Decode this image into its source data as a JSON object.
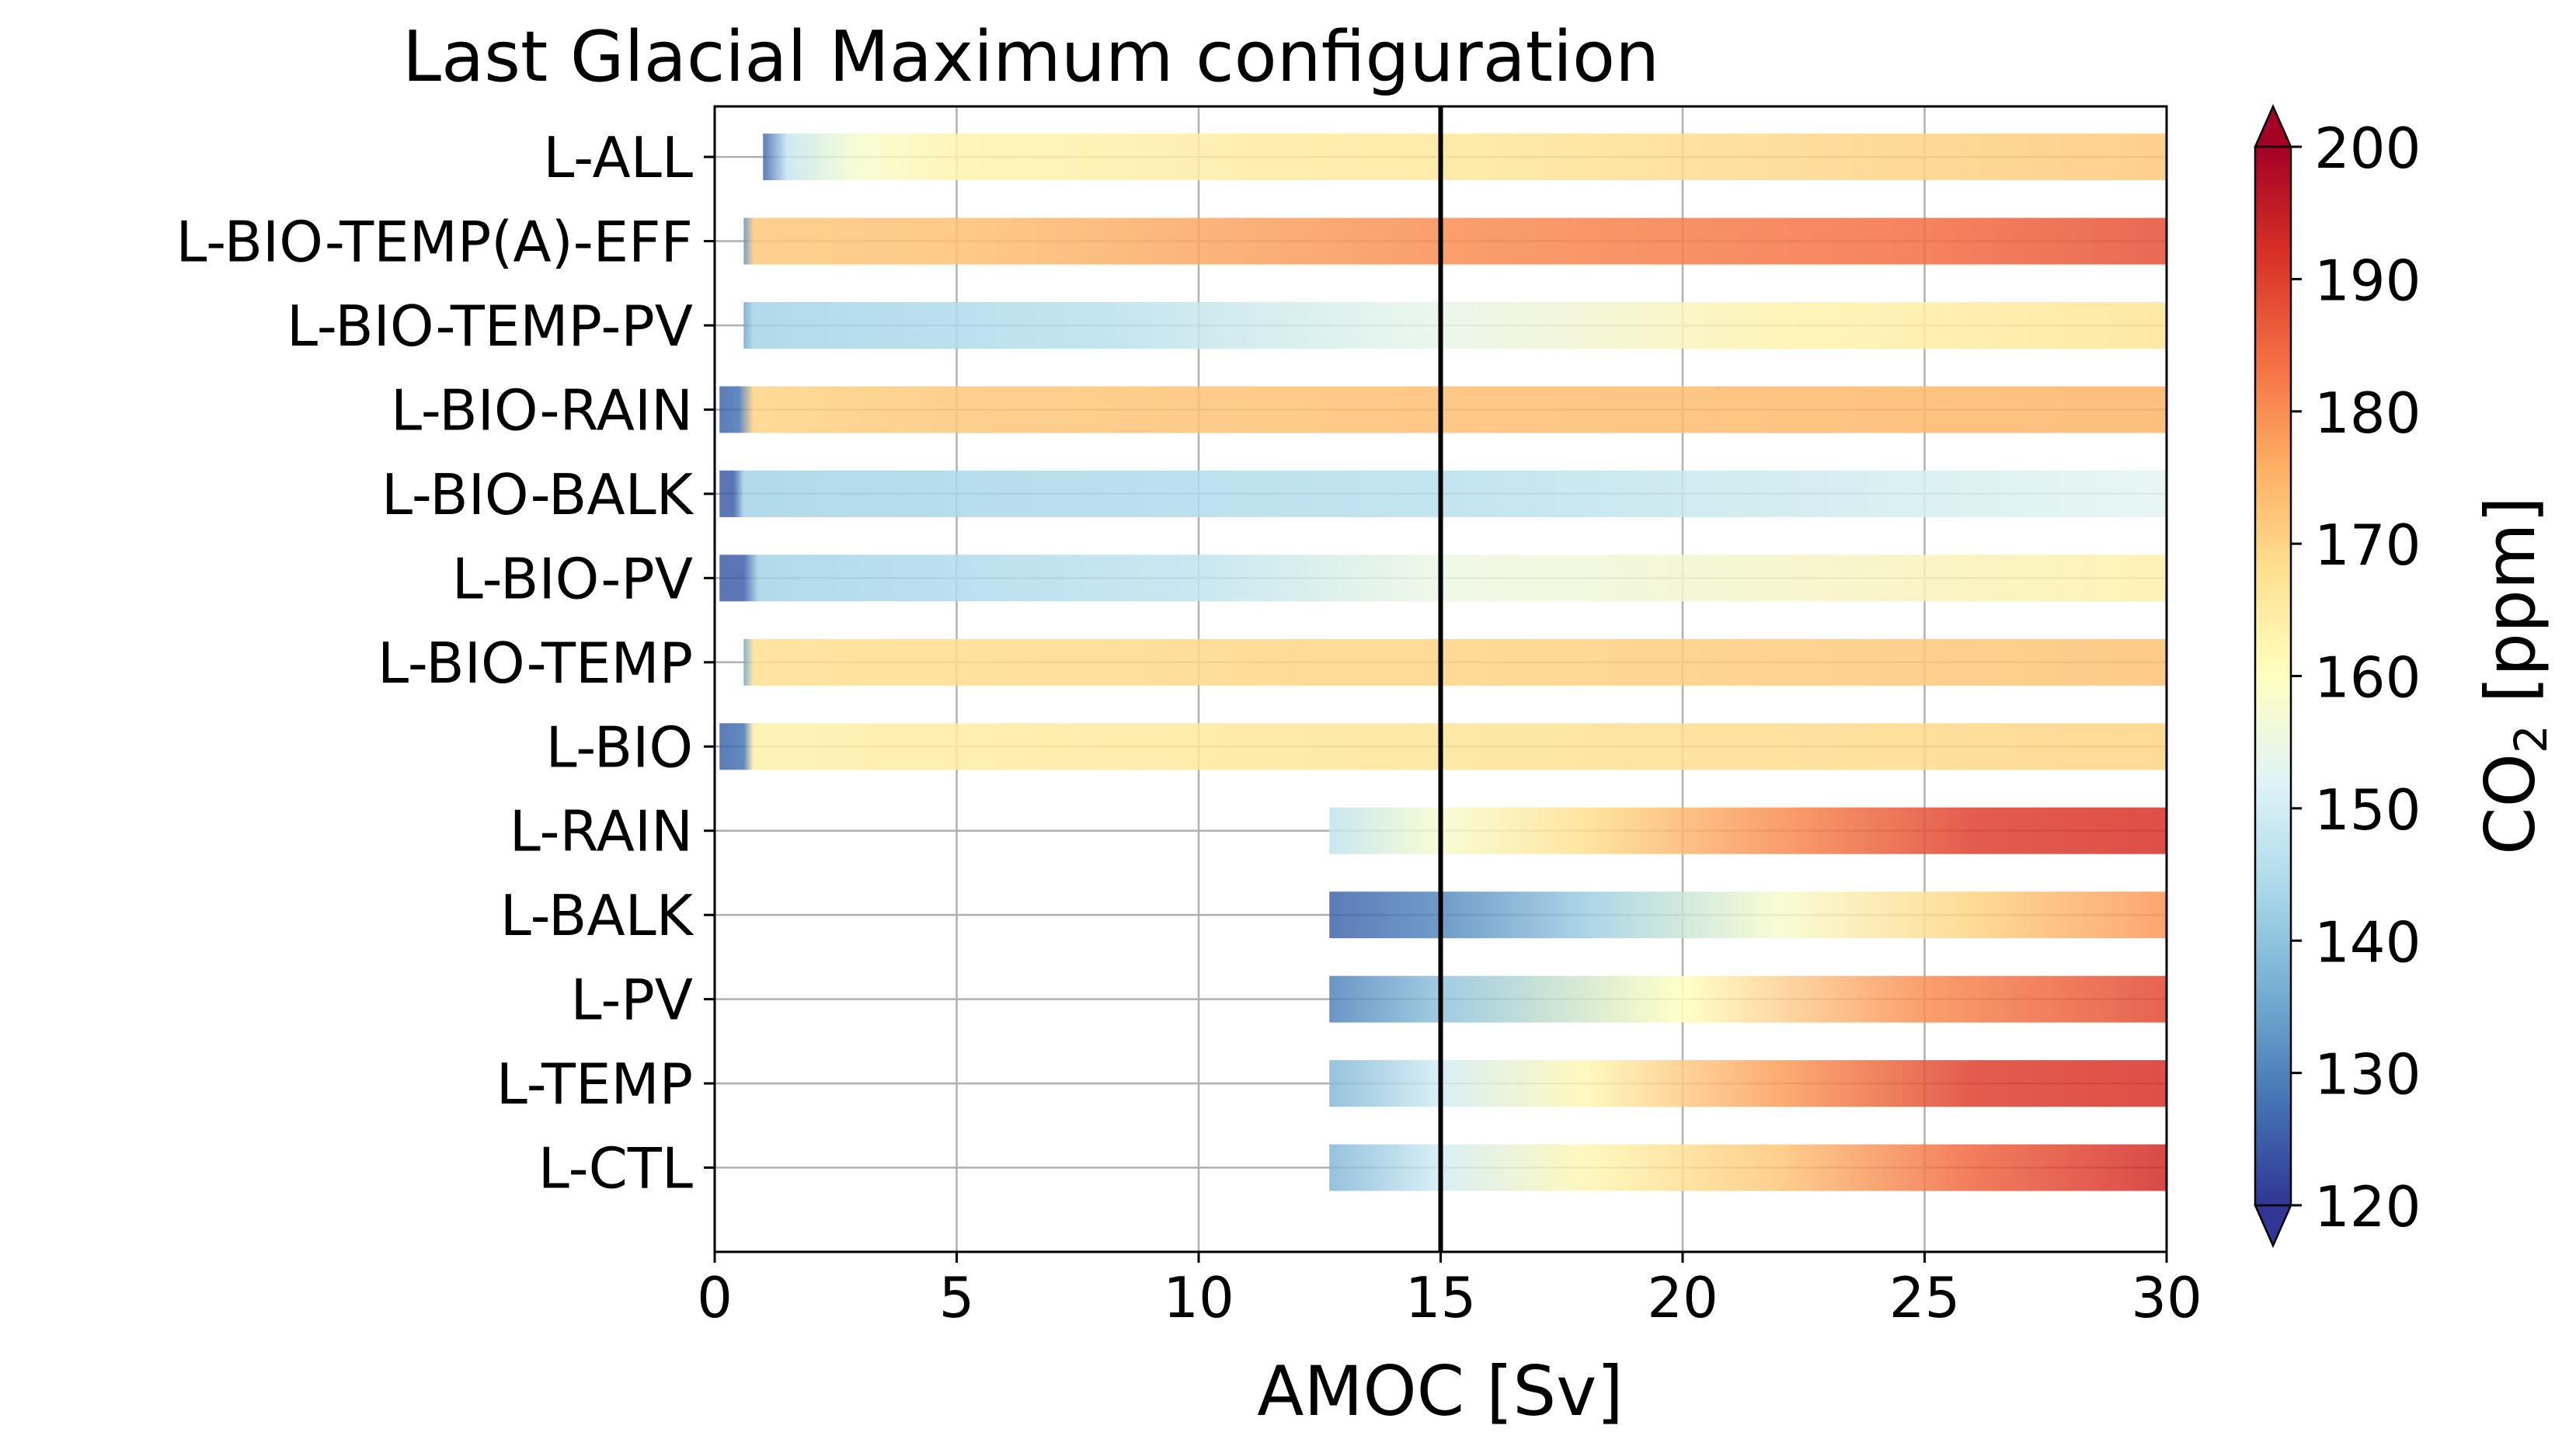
{
  "chart_data": {
    "type": "bar",
    "orientation": "horizontal",
    "title": "Last Glacial Maximum configuration",
    "xlabel": "AMOC [Sv]",
    "colorbar_label": "CO",
    "colorbar_label_sub": "2",
    "colorbar_label_unit": " [ppm]",
    "xlim": [
      0,
      30
    ],
    "xticks": [
      "0",
      "5",
      "10",
      "15",
      "20",
      "25",
      "30"
    ],
    "reference_line_x": 15,
    "grid": true,
    "colormap": "RdYlBu_r",
    "colormap_stops": [
      "#313695",
      "#4575b4",
      "#74add1",
      "#abd9e9",
      "#e0f3f8",
      "#ffffbf",
      "#fee090",
      "#fdae61",
      "#f46d43",
      "#d73027",
      "#a50026"
    ],
    "clim": [
      120,
      200
    ],
    "colorbar_ticks": [
      "120",
      "130",
      "140",
      "150",
      "160",
      "170",
      "180",
      "190",
      "200"
    ],
    "colorbar_extend": "both",
    "series": [
      {
        "label": "L-ALL",
        "xmin": 1.0,
        "xmax": 30,
        "co2": [
          [
            1.0,
            126
          ],
          [
            1.5,
            148
          ],
          [
            3,
            158
          ],
          [
            5,
            163
          ],
          [
            15,
            166
          ],
          [
            30,
            172
          ]
        ]
      },
      {
        "label": "L-BIO-TEMP(A)-EFF",
        "xmin": 0.6,
        "xmax": 30,
        "co2": [
          [
            0.6,
            132
          ],
          [
            0.8,
            172
          ],
          [
            5,
            173
          ],
          [
            15,
            180
          ],
          [
            25,
            184
          ],
          [
            30,
            188
          ]
        ]
      },
      {
        "label": "L-BIO-TEMP-PV",
        "xmin": 0.6,
        "xmax": 30,
        "co2": [
          [
            0.6,
            135
          ],
          [
            0.8,
            143
          ],
          [
            8,
            146
          ],
          [
            15,
            154
          ],
          [
            22,
            163
          ],
          [
            30,
            167
          ]
        ]
      },
      {
        "label": "L-BIO-RAIN",
        "xmin": 0.1,
        "xmax": 30,
        "co2": [
          [
            0.1,
            126
          ],
          [
            0.5,
            128
          ],
          [
            0.8,
            170
          ],
          [
            5,
            172
          ],
          [
            30,
            175
          ]
        ]
      },
      {
        "label": "L-BIO-BALK",
        "xmin": 0.1,
        "xmax": 30,
        "co2": [
          [
            0.1,
            125
          ],
          [
            0.4,
            125
          ],
          [
            0.6,
            143
          ],
          [
            15,
            146
          ],
          [
            30,
            153
          ]
        ]
      },
      {
        "label": "L-BIO-PV",
        "xmin": 0.1,
        "xmax": 30,
        "co2": [
          [
            0.1,
            125
          ],
          [
            0.6,
            125
          ],
          [
            0.9,
            143
          ],
          [
            10,
            147
          ],
          [
            15,
            155
          ],
          [
            30,
            164
          ]
        ]
      },
      {
        "label": "L-BIO-TEMP",
        "xmin": 0.6,
        "xmax": 30,
        "co2": [
          [
            0.6,
            135
          ],
          [
            0.8,
            168
          ],
          [
            15,
            170
          ],
          [
            30,
            173
          ]
        ]
      },
      {
        "label": "L-BIO",
        "xmin": 0.1,
        "xmax": 30,
        "co2": [
          [
            0.1,
            126
          ],
          [
            0.6,
            128
          ],
          [
            0.8,
            164
          ],
          [
            15,
            167
          ],
          [
            30,
            170
          ]
        ]
      },
      {
        "label": "L-RAIN",
        "xmin": 12.7,
        "xmax": 30,
        "co2": [
          [
            12.7,
            147
          ],
          [
            15,
            158
          ],
          [
            18,
            168
          ],
          [
            22,
            180
          ],
          [
            26,
            190
          ],
          [
            30,
            192
          ]
        ]
      },
      {
        "label": "L-BALK",
        "xmin": 12.7,
        "xmax": 30,
        "co2": [
          [
            12.7,
            126
          ],
          [
            15,
            131
          ],
          [
            18,
            142
          ],
          [
            22,
            158
          ],
          [
            26,
            170
          ],
          [
            30,
            179
          ]
        ]
      },
      {
        "label": "L-PV",
        "xmin": 12.7,
        "xmax": 30,
        "co2": [
          [
            12.7,
            130
          ],
          [
            15,
            140
          ],
          [
            20,
            160
          ],
          [
            25,
            180
          ],
          [
            30,
            189
          ]
        ]
      },
      {
        "label": "L-TEMP",
        "xmin": 12.7,
        "xmax": 30,
        "co2": [
          [
            12.7,
            138
          ],
          [
            15,
            150
          ],
          [
            18,
            162
          ],
          [
            22,
            178
          ],
          [
            26,
            190
          ],
          [
            30,
            192
          ]
        ]
      },
      {
        "label": "L-CTL",
        "xmin": 12.7,
        "xmax": 30,
        "co2": [
          [
            12.7,
            138
          ],
          [
            15,
            150
          ],
          [
            18,
            162
          ],
          [
            22,
            172
          ],
          [
            26,
            185
          ],
          [
            30,
            193
          ]
        ]
      }
    ]
  }
}
